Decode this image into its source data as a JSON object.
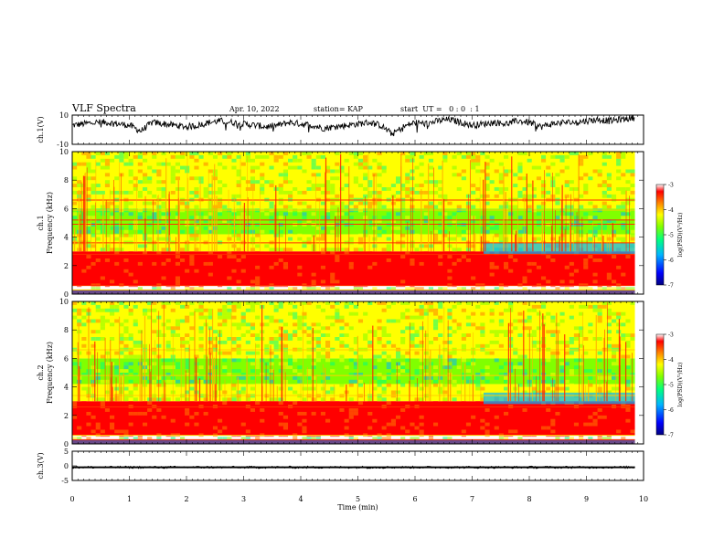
{
  "header": {
    "title": "VLF Spectra",
    "date": "Apr. 10, 2022",
    "station": "station= KAP",
    "start": "start  UT =   0 : 0  : 1"
  },
  "chart_data": [
    {
      "type": "line",
      "name": "ch.1 waveform",
      "ylabel": "ch.1(V)",
      "xlim": [
        0,
        10
      ],
      "ylim": [
        -10,
        10
      ],
      "yticks": [
        "10",
        "-10"
      ],
      "series": [
        {
          "x_step_min": 0.2,
          "values": [
            3,
            4,
            5,
            5,
            4,
            3,
            -1,
            5,
            4,
            3,
            2,
            3,
            5,
            6,
            5,
            4,
            3,
            2,
            3,
            5,
            4,
            3,
            1,
            2,
            3,
            4,
            5,
            3,
            -3,
            2,
            5,
            4,
            6,
            7,
            5,
            3,
            4,
            5,
            4,
            6,
            5,
            2,
            4,
            5,
            5,
            6,
            7,
            6,
            7,
            8
          ]
        }
      ]
    },
    {
      "type": "heatmap",
      "name": "ch.1 spectrogram",
      "ylabel": "ch.1\nFrequency (kHz)",
      "xlim": [
        0,
        10
      ],
      "ylim": [
        0,
        10
      ],
      "yticks": [
        "0",
        "2",
        "4",
        "6",
        "8",
        "10"
      ],
      "colorbar": {
        "range": [
          -7,
          -3
        ],
        "ticks": [
          "-3",
          "-4",
          "-5",
          "-6",
          "-7"
        ],
        "label": "log(PSD)(V²/Hz)"
      },
      "bands": [
        {
          "from_khz": 0.6,
          "to_khz": 3.0,
          "level": -3.2,
          "note": "intense band"
        },
        {
          "from_khz": 3.0,
          "to_khz": 4.2,
          "level": -4.4
        },
        {
          "from_khz": 4.2,
          "to_khz": 5.0,
          "level": -5.0
        },
        {
          "from_khz": 5.0,
          "to_khz": 6.0,
          "level": -4.9
        },
        {
          "from_khz": 6.0,
          "to_khz": 10.0,
          "level": -4.5
        }
      ],
      "lines_khz": [
        0.3,
        0.6,
        2.8,
        3.6,
        4.9,
        5.2,
        5.9,
        6.6
      ]
    },
    {
      "type": "heatmap",
      "name": "ch.2 spectrogram",
      "ylabel": "ch.2\nFrequency (kHz)",
      "xlim": [
        0,
        10
      ],
      "ylim": [
        0,
        10
      ],
      "yticks": [
        "0",
        "2",
        "4",
        "6",
        "8",
        "10"
      ],
      "colorbar": {
        "range": [
          -7,
          -3
        ],
        "ticks": [
          "-3",
          "-4",
          "-5",
          "-6",
          "-7"
        ],
        "label": "log(PSD)(V²/Hz)"
      },
      "bands": [
        {
          "from_khz": 0.6,
          "to_khz": 3.0,
          "level": -3.2,
          "note": "intense band"
        },
        {
          "from_khz": 3.0,
          "to_khz": 4.2,
          "level": -4.4
        },
        {
          "from_khz": 4.2,
          "to_khz": 5.0,
          "level": -5.0
        },
        {
          "from_khz": 5.0,
          "to_khz": 6.0,
          "level": -4.9
        },
        {
          "from_khz": 6.0,
          "to_khz": 10.0,
          "level": -4.5
        }
      ],
      "lines_khz": [
        0.3,
        0.6,
        2.6,
        3.4,
        4.8,
        6.6
      ]
    },
    {
      "type": "line",
      "name": "ch.3 waveform",
      "ylabel": "ch.3(V)",
      "xlim": [
        0,
        10
      ],
      "ylim": [
        -5,
        5
      ],
      "yticks": [
        "5",
        "0",
        "-5"
      ],
      "series": [
        {
          "level_v": -0.5,
          "spread_v": 0.6
        }
      ]
    }
  ],
  "xaxis": {
    "label": "Time (min)",
    "ticks": [
      "0",
      "1",
      "2",
      "3",
      "4",
      "5",
      "6",
      "7",
      "8",
      "9",
      "10"
    ],
    "range": [
      0,
      10
    ]
  },
  "colors": {
    "colormap": [
      "#000080",
      "#0000ff",
      "#00b4ff",
      "#00ff80",
      "#80ff00",
      "#ffff00",
      "#ff8000",
      "#ff0000",
      "#ffffff"
    ]
  }
}
